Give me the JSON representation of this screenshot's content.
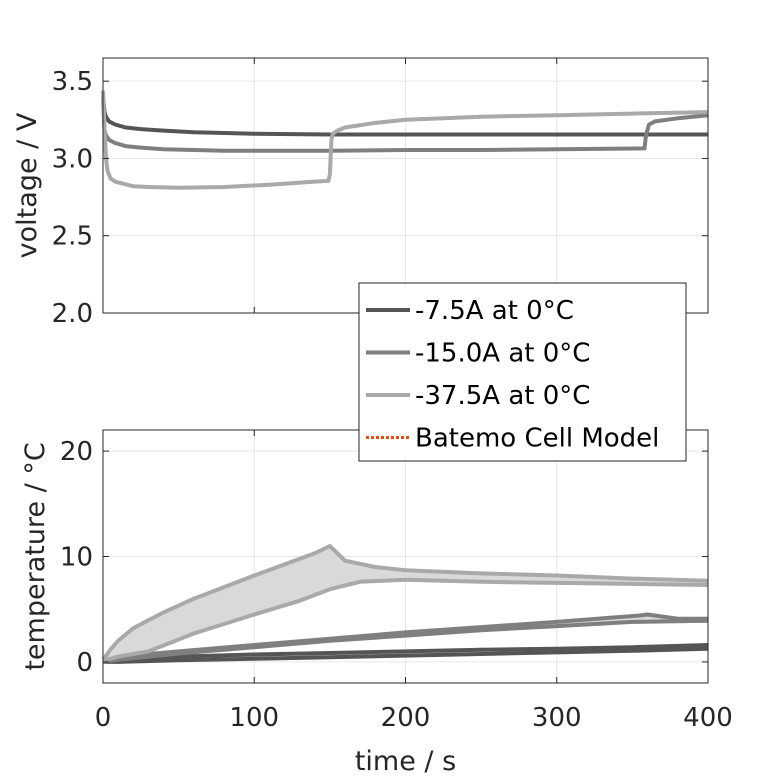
{
  "chart_data": [
    {
      "type": "line",
      "ylabel": "voltage / V",
      "xlim": [
        0,
        400
      ],
      "ylim": [
        2.0,
        3.65
      ],
      "xticks": [
        0,
        100,
        200,
        300,
        400
      ],
      "yticks": [
        "2.0",
        "2.5",
        "3.0",
        "3.5"
      ],
      "grid": true,
      "show_x_tick_labels": false,
      "series": [
        {
          "name": "-7.5A at 0°C",
          "color": "#555555",
          "x": [
            0,
            1,
            2,
            4,
            8,
            15,
            25,
            40,
            60,
            100,
            150,
            200,
            300,
            400
          ],
          "y": [
            3.4,
            3.3,
            3.27,
            3.24,
            3.22,
            3.2,
            3.19,
            3.18,
            3.17,
            3.16,
            3.155,
            3.155,
            3.155,
            3.155
          ]
        },
        {
          "name": "-15.0A at 0°C",
          "color": "#7f7f7f",
          "x": [
            0,
            1,
            2,
            4,
            8,
            15,
            25,
            40,
            60,
            80,
            100,
            150,
            200,
            250,
            300,
            358,
            359,
            361,
            365,
            380,
            400
          ],
          "y": [
            3.38,
            3.18,
            3.15,
            3.12,
            3.1,
            3.08,
            3.07,
            3.06,
            3.055,
            3.05,
            3.05,
            3.05,
            3.055,
            3.055,
            3.06,
            3.065,
            3.15,
            3.22,
            3.24,
            3.26,
            3.28
          ]
        },
        {
          "name": "-37.5A at 0°C",
          "color": "#a9a9a9",
          "x": [
            0,
            1,
            2,
            3,
            5,
            8,
            12,
            20,
            30,
            50,
            80,
            110,
            140,
            149,
            150,
            151,
            152,
            155,
            160,
            180,
            200,
            250,
            300,
            350,
            400
          ],
          "y": [
            3.44,
            3.2,
            3.0,
            2.92,
            2.87,
            2.85,
            2.84,
            2.82,
            2.815,
            2.81,
            2.815,
            2.83,
            2.85,
            2.855,
            2.9,
            3.12,
            3.16,
            3.18,
            3.2,
            3.23,
            3.25,
            3.27,
            3.28,
            3.29,
            3.3
          ]
        }
      ]
    },
    {
      "type": "area",
      "xlabel": "time / s",
      "ylabel": "temperature / °C",
      "xlim": [
        0,
        400
      ],
      "ylim": [
        -2,
        22
      ],
      "xticks": [
        "0",
        "100",
        "200",
        "300",
        "400"
      ],
      "yticks": [
        "0",
        "10",
        "20"
      ],
      "grid": true,
      "series": [
        {
          "name": "-7.5A at 0°C",
          "color": "#555555",
          "band_upper": {
            "x": [
              0,
              10,
              50,
              100,
              150,
              200,
              250,
              300,
              350,
              400
            ],
            "y": [
              0.05,
              0.25,
              0.5,
              0.7,
              0.85,
              1.0,
              1.15,
              1.25,
              1.4,
              1.6
            ]
          },
          "band_lower": {
            "x": [
              0,
              10,
              50,
              100,
              150,
              200,
              250,
              300,
              350,
              400
            ],
            "y": [
              0.0,
              0.0,
              0.15,
              0.3,
              0.45,
              0.6,
              0.75,
              0.9,
              1.05,
              1.25
            ]
          }
        },
        {
          "name": "-15.0A at 0°C",
          "color": "#7f7f7f",
          "band_upper": {
            "x": [
              0,
              10,
              50,
              100,
              150,
              200,
              250,
              300,
              355,
              360,
              380,
              400
            ],
            "y": [
              0.1,
              0.5,
              1.0,
              1.6,
              2.2,
              2.8,
              3.3,
              3.8,
              4.4,
              4.5,
              4.1,
              4.1
            ]
          },
          "band_lower": {
            "x": [
              0,
              10,
              50,
              100,
              150,
              200,
              250,
              300,
              350,
              400
            ],
            "y": [
              0.0,
              0.2,
              0.8,
              1.4,
              2.0,
              2.5,
              3.0,
              3.4,
              3.8,
              3.9
            ]
          }
        },
        {
          "name": "-37.5A at 0°C",
          "color": "#a9a9a9",
          "band_upper": {
            "x": [
              0,
              5,
              10,
              20,
              40,
              60,
              100,
              140,
              150,
              155,
              160,
              180,
              200,
              250,
              300,
              350,
              400
            ],
            "y": [
              0.2,
              1.2,
              2.0,
              3.2,
              4.7,
              6.0,
              8.2,
              10.3,
              11.0,
              10.3,
              9.6,
              9.0,
              8.7,
              8.4,
              8.2,
              7.9,
              7.7
            ]
          },
          "band_lower": {
            "x": [
              0,
              10,
              30,
              60,
              100,
              130,
              150,
              170,
              200,
              250,
              300,
              350,
              400
            ],
            "y": [
              0.1,
              0.5,
              1.0,
              2.7,
              4.5,
              5.8,
              6.9,
              7.6,
              7.8,
              7.6,
              7.5,
              7.4,
              7.3
            ]
          }
        }
      ]
    }
  ],
  "legend": {
    "placement": "center",
    "items": [
      {
        "label": "-7.5A at 0°C",
        "color": "#555555",
        "style": "solid"
      },
      {
        "label": "-15.0A at 0°C",
        "color": "#7f7f7f",
        "style": "solid"
      },
      {
        "label": "-37.5A at 0°C",
        "color": "#a9a9a9",
        "style": "solid"
      },
      {
        "label": "Batemo Cell Model",
        "color": "#d95319",
        "style": "dotted"
      }
    ]
  }
}
